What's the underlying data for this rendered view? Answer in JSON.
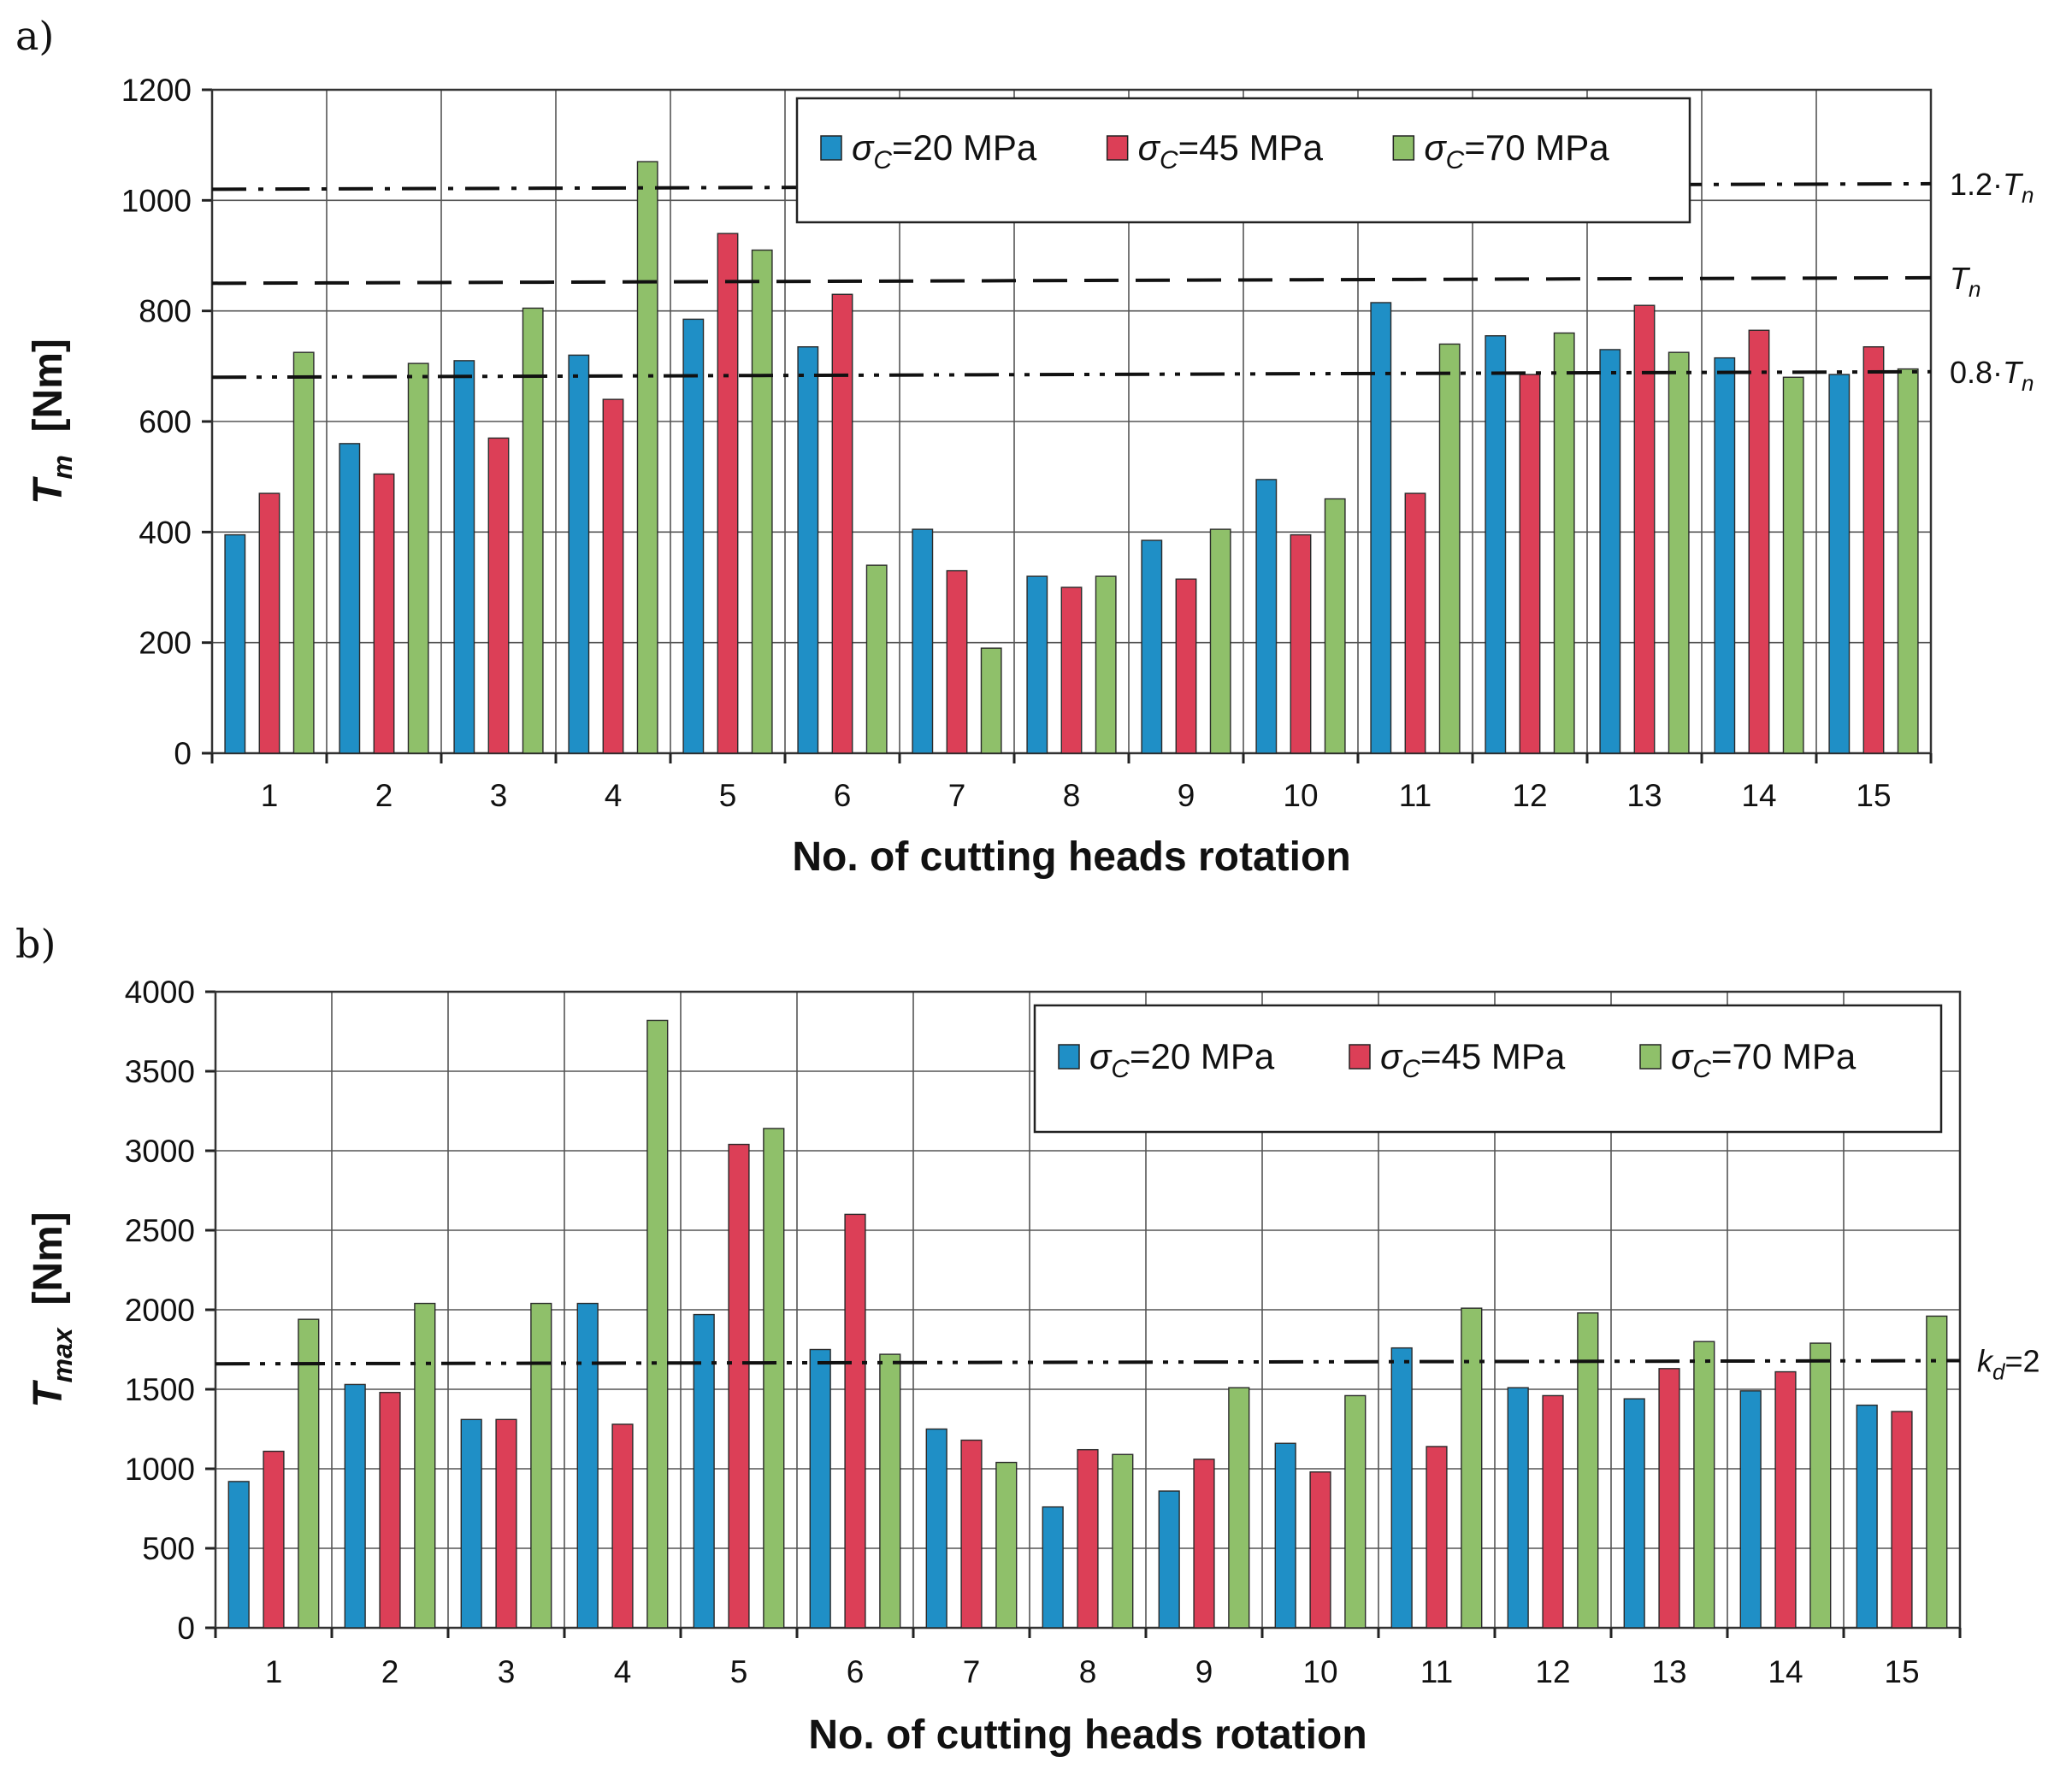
{
  "chart_data": [
    {
      "type": "bar",
      "panel_label": "a)",
      "categories": [
        "1",
        "2",
        "3",
        "4",
        "5",
        "6",
        "7",
        "8",
        "9",
        "10",
        "11",
        "12",
        "13",
        "14",
        "15"
      ],
      "series": [
        {
          "name": "σC=20 MPa",
          "legend_sigma": "σ",
          "legend_sub": "C",
          "legend_rest": "=20 MPa",
          "color": "#1f8fc6",
          "values": [
            395,
            560,
            710,
            720,
            785,
            735,
            405,
            320,
            385,
            495,
            815,
            755,
            730,
            715,
            685
          ]
        },
        {
          "name": "σC=45 MPa",
          "legend_sigma": "σ",
          "legend_sub": "C",
          "legend_rest": "=45 MPa",
          "color": "#dc3f57",
          "values": [
            470,
            505,
            570,
            640,
            940,
            830,
            330,
            300,
            315,
            395,
            470,
            685,
            810,
            765,
            735
          ]
        },
        {
          "name": "σC=70 MPa",
          "legend_sigma": "σ",
          "legend_sub": "C",
          "legend_rest": "=70 MPa",
          "color": "#8fc06a",
          "values": [
            725,
            705,
            805,
            1070,
            910,
            340,
            190,
            320,
            405,
            460,
            740,
            760,
            725,
            680,
            695
          ]
        }
      ],
      "ylabel_main": "T",
      "ylabel_sub": "m",
      "ylabel_unit": "[Nm]",
      "xlabel": "No. of cutting heads rotation",
      "ylim": [
        0,
        1200
      ],
      "yticks": [
        0,
        200,
        400,
        600,
        800,
        1000,
        1200
      ],
      "legend_position": "top-center",
      "reference_lines": [
        {
          "value": 1020,
          "value_end": 1030,
          "style": "dash-dot",
          "label_prefix": "1.2·",
          "label_main": "T",
          "label_sub": "n"
        },
        {
          "value": 850,
          "value_end": 860,
          "style": "dashed",
          "label_prefix": "",
          "label_main": "T",
          "label_sub": "n"
        },
        {
          "value": 680,
          "value_end": 690,
          "style": "dash-dot-dot",
          "label_prefix": "0.8·",
          "label_main": "T",
          "label_sub": "n"
        }
      ]
    },
    {
      "type": "bar",
      "panel_label": "b)",
      "categories": [
        "1",
        "2",
        "3",
        "4",
        "5",
        "6",
        "7",
        "8",
        "9",
        "10",
        "11",
        "12",
        "13",
        "14",
        "15"
      ],
      "series": [
        {
          "name": "σC=20 MPa",
          "legend_sigma": "σ",
          "legend_sub": "C",
          "legend_rest": "=20 MPa",
          "color": "#1f8fc6",
          "values": [
            920,
            1530,
            1310,
            2040,
            1970,
            1750,
            1250,
            760,
            860,
            1160,
            1760,
            1510,
            1440,
            1490,
            1400
          ]
        },
        {
          "name": "σC=45 MPa",
          "legend_sigma": "σ",
          "legend_sub": "C",
          "legend_rest": "=45 MPa",
          "color": "#dc3f57",
          "values": [
            1110,
            1480,
            1310,
            1280,
            3040,
            2600,
            1180,
            1120,
            1060,
            980,
            1140,
            1460,
            1630,
            1610,
            1360
          ]
        },
        {
          "name": "σC=70 MPa",
          "legend_sigma": "σ",
          "legend_sub": "C",
          "legend_rest": "=70 MPa",
          "color": "#8fc06a",
          "values": [
            1940,
            2040,
            2040,
            3820,
            3140,
            1720,
            1040,
            1090,
            1510,
            1460,
            2010,
            1980,
            1800,
            1790,
            1960
          ]
        }
      ],
      "ylabel_main": "T",
      "ylabel_sub": "max",
      "ylabel_unit": "[Nm]",
      "xlabel": "No. of cutting heads rotation",
      "ylim": [
        0,
        4000
      ],
      "yticks": [
        0,
        500,
        1000,
        1500,
        2000,
        2500,
        3000,
        3500,
        4000
      ],
      "legend_position": "top-right",
      "reference_lines": [
        {
          "value": 1660,
          "value_end": 1680,
          "style": "dash-dot-dot",
          "label_prefix": "",
          "label_main": "k",
          "label_sub": "d",
          "label_suffix": "=2"
        }
      ]
    }
  ]
}
